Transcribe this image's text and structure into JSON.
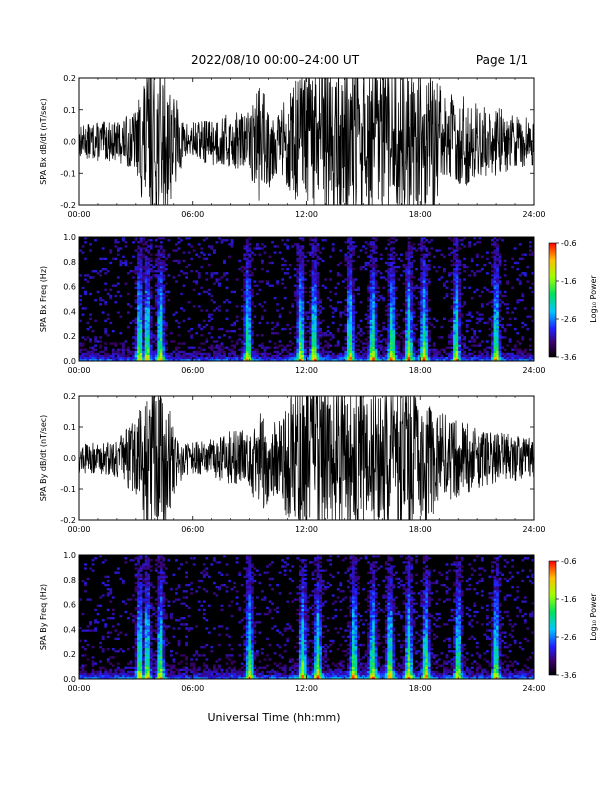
{
  "header": {
    "title": "2022/08/10  00:00–24:00 UT",
    "page": "Page 1/1"
  },
  "x_axis_title": "Universal Time (hh:mm)",
  "colors": {
    "trace": "#000000",
    "spectrogram_background": "#000000"
  },
  "chart_data": [
    {
      "type": "line",
      "title": "",
      "xlabel": "",
      "ylabel": "SPA Bx dB/dt (nT/sec)",
      "xlim": [
        0,
        24
      ],
      "ylim": [
        -0.2,
        0.2
      ],
      "x_ticks": [
        "00:00",
        "06:00",
        "12:00",
        "18:00",
        "24:00"
      ],
      "y_ticks": [
        "-0.2",
        "-0.1",
        "0.0",
        "0.1",
        "0.2"
      ],
      "amplitude_envelope": {
        "x": [
          0,
          1,
          2,
          3,
          3.5,
          4,
          4.5,
          5,
          5.5,
          6,
          7,
          8,
          9,
          9.5,
          10,
          10.5,
          11,
          12,
          13,
          14,
          15,
          16,
          17,
          18,
          19,
          20,
          21,
          22,
          23,
          24
        ],
        "values": [
          0.04,
          0.05,
          0.05,
          0.08,
          0.2,
          0.2,
          0.2,
          0.13,
          0.05,
          0.05,
          0.06,
          0.07,
          0.08,
          0.15,
          0.12,
          0.08,
          0.12,
          0.2,
          0.2,
          0.2,
          0.2,
          0.2,
          0.2,
          0.2,
          0.15,
          0.12,
          0.1,
          0.09,
          0.07,
          0.06
        ]
      }
    },
    {
      "type": "heatmap",
      "title": "",
      "xlabel": "",
      "ylabel": "SPA Bx Freq (Hz)",
      "xlim": [
        0,
        24
      ],
      "ylim": [
        0,
        1
      ],
      "x_ticks": [
        "00:00",
        "06:00",
        "12:00",
        "18:00",
        "24:00"
      ],
      "y_ticks": [
        "0.0",
        "0.2",
        "0.4",
        "0.6",
        "0.8",
        "1.0"
      ],
      "colorbar": {
        "label": "Log₁₀ Power",
        "range": [
          -3.6,
          -0.6
        ],
        "ticks": [
          "-0.6",
          "-1.6",
          "-2.6",
          "-3.6"
        ]
      },
      "activity_peaks_hours": [
        3.2,
        3.6,
        4.3,
        8.9,
        11.7,
        12.4,
        14.3,
        15.5,
        16.5,
        17.4,
        18.2,
        19.9,
        22.0
      ]
    },
    {
      "type": "line",
      "title": "",
      "xlabel": "",
      "ylabel": "SPA By dB/dt (nT/sec)",
      "xlim": [
        0,
        24
      ],
      "ylim": [
        -0.2,
        0.2
      ],
      "x_ticks": [
        "00:00",
        "06:00",
        "12:00",
        "18:00",
        "24:00"
      ],
      "y_ticks": [
        "-0.2",
        "-0.1",
        "0.0",
        "0.1",
        "0.2"
      ],
      "amplitude_envelope": {
        "x": [
          0,
          1,
          2,
          3,
          3.5,
          4,
          4.5,
          5,
          5.5,
          6,
          7,
          8,
          9,
          9.5,
          10,
          10.5,
          11,
          12,
          13,
          14,
          15,
          16,
          17,
          18,
          19,
          20,
          21,
          22,
          23,
          24
        ],
        "values": [
          0.04,
          0.04,
          0.05,
          0.1,
          0.2,
          0.2,
          0.2,
          0.1,
          0.05,
          0.04,
          0.05,
          0.07,
          0.08,
          0.14,
          0.12,
          0.1,
          0.16,
          0.2,
          0.2,
          0.2,
          0.2,
          0.2,
          0.2,
          0.18,
          0.13,
          0.1,
          0.08,
          0.07,
          0.06,
          0.05
        ]
      }
    },
    {
      "type": "heatmap",
      "title": "",
      "xlabel": "",
      "ylabel": "SPA By Freq (Hz)",
      "xlim": [
        0,
        24
      ],
      "ylim": [
        0,
        1
      ],
      "x_ticks": [
        "00:00",
        "06:00",
        "12:00",
        "18:00",
        "24:00"
      ],
      "y_ticks": [
        "0.0",
        "0.2",
        "0.4",
        "0.6",
        "0.8",
        "1.0"
      ],
      "colorbar": {
        "label": "Log₁₀ Power",
        "range": [
          -3.6,
          -0.6
        ],
        "ticks": [
          "-0.6",
          "-1.6",
          "-2.6",
          "-3.6"
        ]
      },
      "activity_peaks_hours": [
        3.2,
        3.6,
        4.3,
        9.0,
        11.8,
        12.6,
        14.5,
        15.5,
        16.4,
        17.4,
        18.3,
        20.0,
        22.0
      ]
    }
  ]
}
